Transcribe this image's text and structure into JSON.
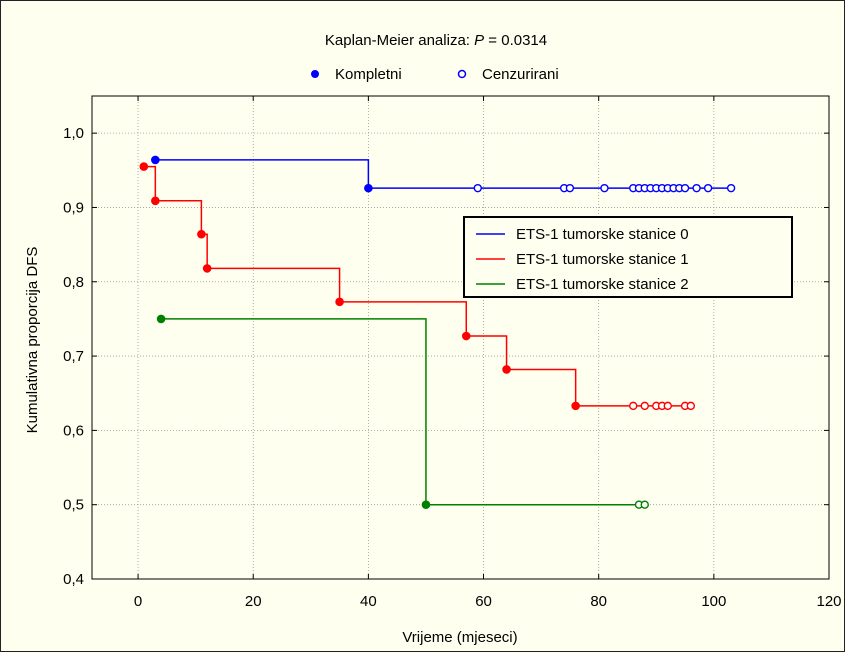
{
  "chart_data": {
    "type": "line",
    "title_prefix": "Kaplan-Meier analiza: ",
    "title_p": "P",
    "title_suffix": " = 0.0314",
    "marker_legend": [
      {
        "label": "Kompletni",
        "marker": "filled"
      },
      {
        "label": "Cenzurirani",
        "marker": "open"
      }
    ],
    "xlabel": "Vrijeme (mjeseci)",
    "ylabel": "Kumulativna proporcija DFS",
    "xlim": [
      -8,
      120
    ],
    "ylim": [
      0.4,
      1.05
    ],
    "x_ticks": [
      0,
      20,
      40,
      60,
      80,
      100,
      120
    ],
    "x_tick_labels": [
      "0",
      "20",
      "40",
      "60",
      "80",
      "100",
      "120"
    ],
    "y_ticks": [
      0.4,
      0.5,
      0.6,
      0.7,
      0.8,
      0.9,
      1.0
    ],
    "y_tick_labels": [
      "0,4",
      "0,5",
      "0,6",
      "0,7",
      "0,8",
      "0,9",
      "1,0"
    ],
    "grid": true,
    "legend_position": "upper-right",
    "series": [
      {
        "name": "ETS-1 tumorske stanice 0",
        "color": "#0000ff",
        "start": [
          3,
          0.964
        ],
        "events": [
          [
            40,
            0.926
          ]
        ],
        "end_x": 103,
        "censored": [
          [
            59,
            0.926
          ],
          [
            74,
            0.926
          ],
          [
            75,
            0.926
          ],
          [
            81,
            0.926
          ],
          [
            86,
            0.926
          ],
          [
            87,
            0.926
          ],
          [
            88,
            0.926
          ],
          [
            89,
            0.926
          ],
          [
            90,
            0.926
          ],
          [
            91,
            0.926
          ],
          [
            92,
            0.926
          ],
          [
            93,
            0.926
          ],
          [
            94,
            0.926
          ],
          [
            95,
            0.926
          ],
          [
            97,
            0.926
          ],
          [
            99,
            0.926
          ],
          [
            103,
            0.926
          ]
        ]
      },
      {
        "name": "ETS-1 tumorske stanice 1",
        "color": "#ff0000",
        "start": [
          1,
          0.955
        ],
        "events": [
          [
            3,
            0.909
          ],
          [
            11,
            0.864
          ],
          [
            12,
            0.818
          ],
          [
            35,
            0.773
          ],
          [
            57,
            0.727
          ],
          [
            64,
            0.682
          ],
          [
            76,
            0.633
          ]
        ],
        "end_x": 96,
        "censored": [
          [
            86,
            0.633
          ],
          [
            88,
            0.633
          ],
          [
            90,
            0.633
          ],
          [
            91,
            0.633
          ],
          [
            92,
            0.633
          ],
          [
            95,
            0.633
          ],
          [
            96,
            0.633
          ]
        ]
      },
      {
        "name": "ETS-1 tumorske stanice 2",
        "color": "#008000",
        "start": [
          4,
          0.75
        ],
        "events": [
          [
            50,
            0.5
          ]
        ],
        "end_x": 88,
        "censored": [
          [
            87,
            0.5
          ],
          [
            88,
            0.5
          ]
        ]
      }
    ]
  }
}
